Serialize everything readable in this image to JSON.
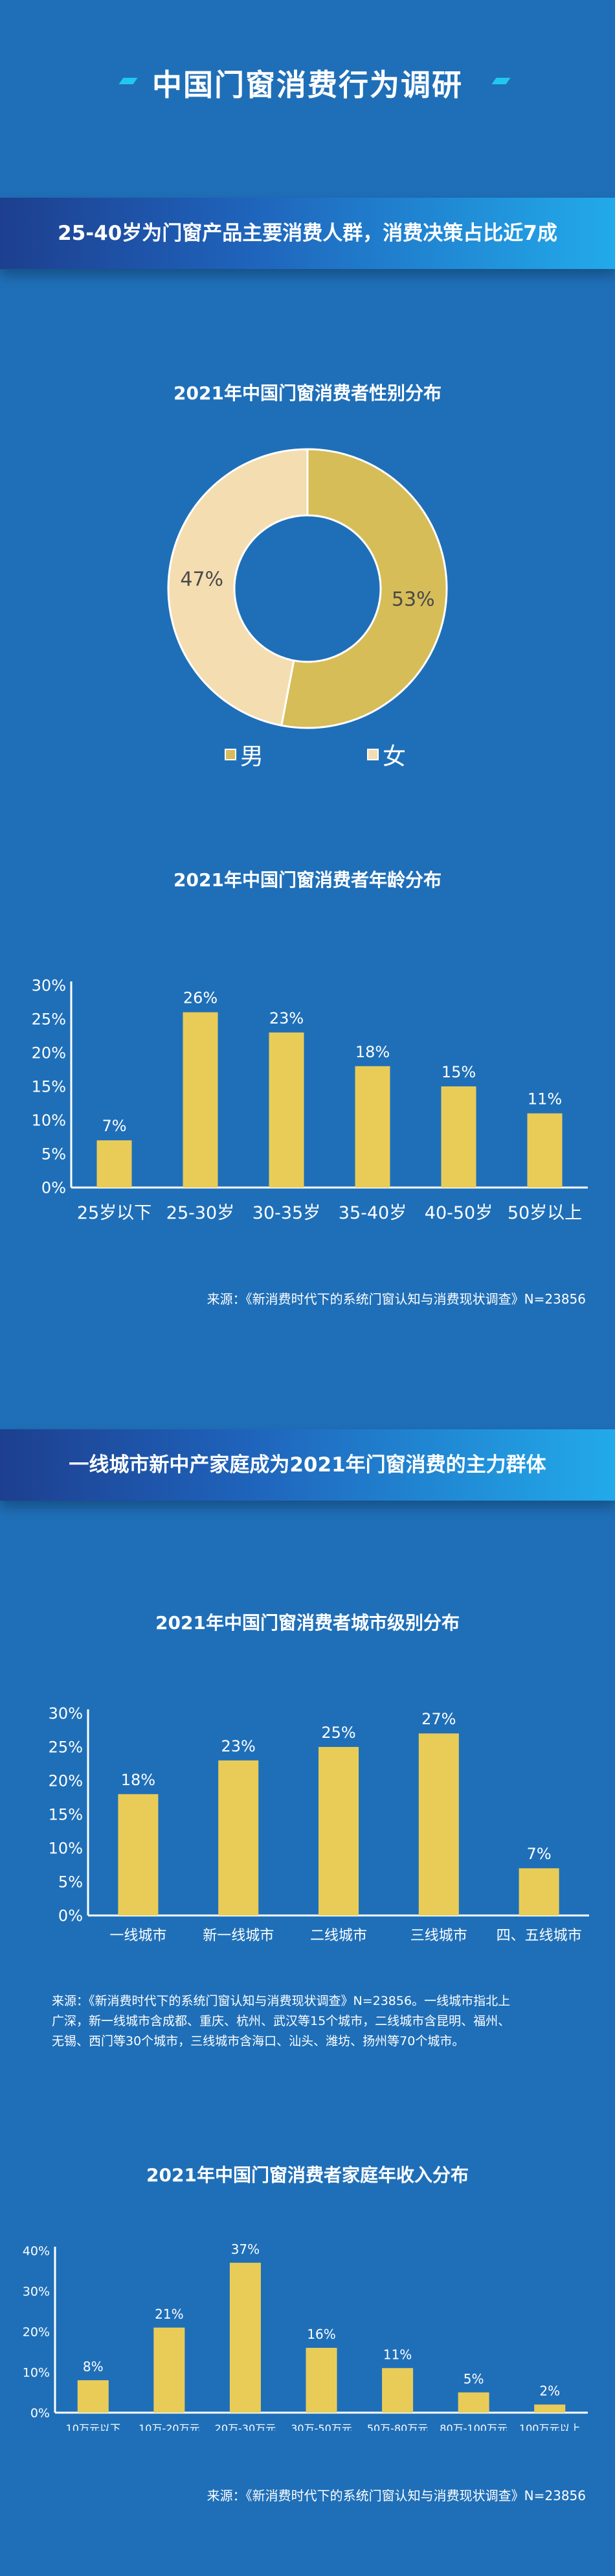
{
  "main_title": "中国门窗消费行为调研",
  "banner1": "25-40岁为门窗产品主要消费人群，消费决策占比近7成",
  "banner2": "一线城市新中产家庭成为2021年门窗消费的主力群体",
  "colors": {
    "background": "#1f6fb8",
    "bar": "#e9cc58",
    "pie_male": "#d6bd58",
    "pie_female": "#f4ddb0",
    "accent": "#21c8ee"
  },
  "chart_data": [
    {
      "type": "pie",
      "style": "donut",
      "title": "2021年中国门窗消费者性别分布",
      "categories": [
        "男",
        "女"
      ],
      "values": [
        53,
        47
      ],
      "value_labels": [
        "53%",
        "47%"
      ],
      "legend_position": "bottom"
    },
    {
      "type": "bar",
      "title": "2021年中国门窗消费者年龄分布",
      "categories": [
        "25岁以下",
        "25-30岁",
        "30-35岁",
        "35-40岁",
        "40-50岁",
        "50岁以上"
      ],
      "values": [
        7,
        26,
        23,
        18,
        15,
        11
      ],
      "value_labels": [
        "7%",
        "26%",
        "23%",
        "18%",
        "15%",
        "11%"
      ],
      "yticks": [
        "0%",
        "5%",
        "10%",
        "15%",
        "20%",
        "25%",
        "30%"
      ],
      "ylim": [
        0,
        30
      ],
      "grid": false,
      "source": "来源：《新消费时代下的系统门窗认知与消费现状调查》N=23856"
    },
    {
      "type": "bar",
      "title": "2021年中国门窗消费者城市级别分布",
      "categories": [
        "一线城市",
        "新一线城市",
        "二线城市",
        "三线城市",
        "四、五线城市"
      ],
      "values": [
        18,
        23,
        25,
        27,
        7
      ],
      "value_labels": [
        "18%",
        "23%",
        "25%",
        "27%",
        "7%"
      ],
      "yticks": [
        "0%",
        "5%",
        "10%",
        "15%",
        "20%",
        "25%",
        "30%"
      ],
      "ylim": [
        0,
        30
      ],
      "grid": false,
      "note_lines": [
        "来源：《新消费时代下的系统门窗认知与消费现状调查》N=23856。一线城市指北上",
        "广深，新一线城市含成都、重庆、杭州、武汉等15个城市，二线城市含昆明、福州、",
        "无锡、西门等30个城市，三线城市含海口、汕头、潍坊、扬州等70个城市。"
      ]
    },
    {
      "type": "bar",
      "title": "2021年中国门窗消费者家庭年收入分布",
      "categories": [
        "10万元以下",
        "10万-20万元",
        "20万-30万元",
        "30万-50万元",
        "50万-80万元",
        "80万-100万元",
        "100万元以上"
      ],
      "values": [
        8,
        21,
        37,
        16,
        11,
        5,
        2
      ],
      "value_labels": [
        "8%",
        "21%",
        "37%",
        "16%",
        "11%",
        "5%",
        "2%"
      ],
      "yticks": [
        "0%",
        "10%",
        "20%",
        "30%",
        "40%"
      ],
      "ylim": [
        0,
        40
      ],
      "grid": false,
      "source": "来源：《新消费时代下的系统门窗认知与消费现状调查》N=23856"
    }
  ]
}
